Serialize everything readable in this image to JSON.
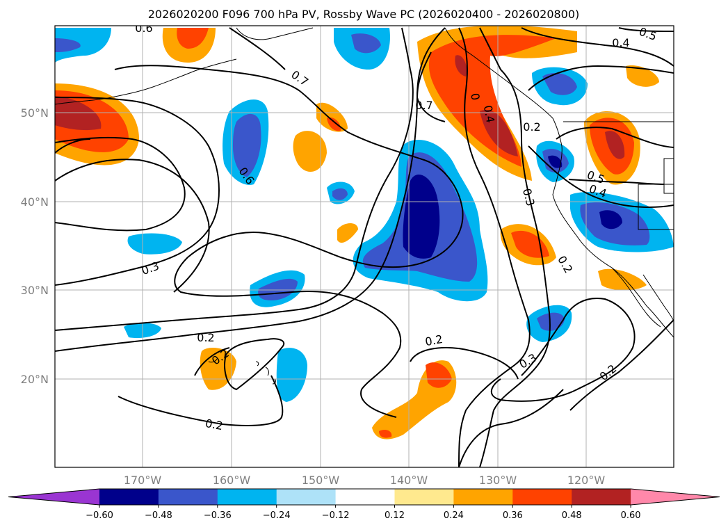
{
  "title": "2026020200 F096 700 hPa PV, Rossby Wave PC (2026020400 - 2026020800)",
  "lat_labels": [
    "50°N",
    "40°N",
    "30°N",
    "20°N"
  ],
  "lon_labels": [
    "170°W",
    "160°W",
    "150°W",
    "140°W",
    "130°W",
    "120°W"
  ],
  "colorbar": {
    "ticks": [
      "−0.60",
      "−0.48",
      "−0.36",
      "−0.24",
      "−0.12",
      "0.12",
      "0.24",
      "0.36",
      "0.48",
      "0.60"
    ],
    "colors": [
      "#9a35d2",
      "#00008b",
      "#3a56cb",
      "#00b4f0",
      "#aee2f8",
      "#ffffff",
      "#ffe98e",
      "#ffa400",
      "#ff4200",
      "#b22222",
      "#ff88aa"
    ]
  },
  "contour_labels": [
    "0.6",
    "0.5",
    "0.4",
    "0.7",
    "0.7",
    "0",
    "0.4",
    "0.2",
    "0.6",
    "0.5",
    "0.4",
    "0.3",
    "0.2",
    "0.3",
    "0.2",
    "0.2",
    "0.2",
    "0.3",
    "0.2",
    "0.2"
  ]
}
